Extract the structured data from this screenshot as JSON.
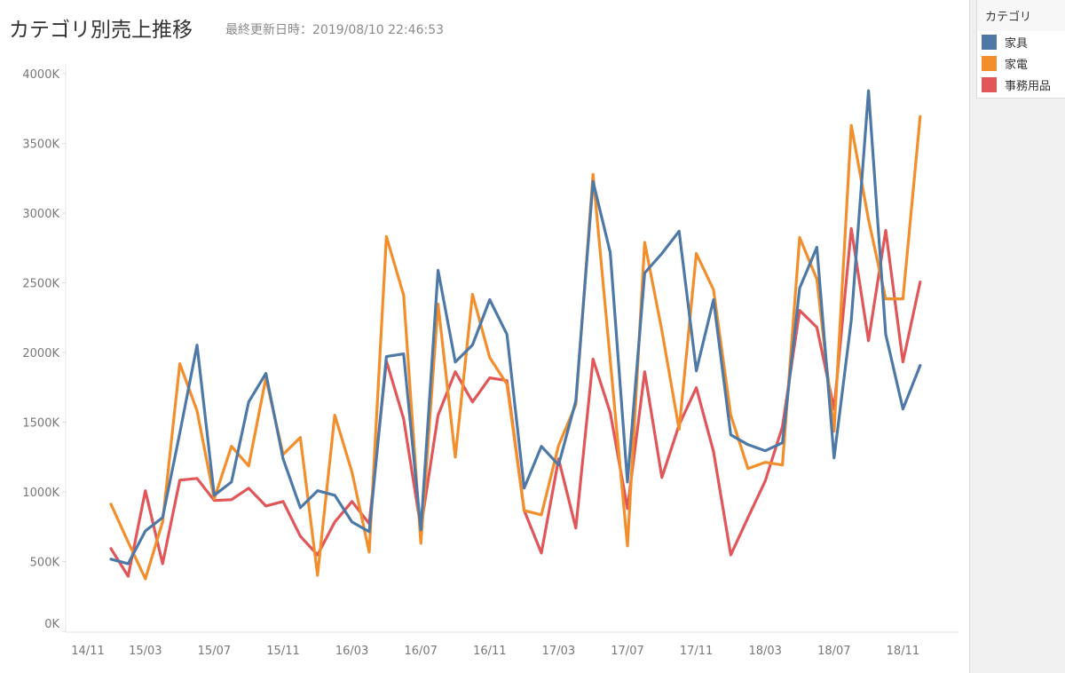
{
  "title": "カテゴリ別売上推移",
  "subtitle": "最終更新日時：2019/08/10 22:46:53",
  "legend": {
    "title": "カテゴリ",
    "items": [
      {
        "label": "家具",
        "color": "#4e79a7"
      },
      {
        "label": "家電",
        "color": "#f28e2b"
      },
      {
        "label": "事務用品",
        "color": "#e15759"
      }
    ]
  },
  "chart_data": {
    "type": "line",
    "title": "カテゴリ別売上推移",
    "xlabel": "",
    "ylabel": "",
    "ylim": [
      0,
      4000
    ],
    "y_unit": "K",
    "grid": false,
    "legend_position": "right",
    "x_start": "2015/01",
    "x_count": 48,
    "x_ticks": [
      {
        "label": "14/11",
        "index": -2
      },
      {
        "label": "15/03",
        "index": 2
      },
      {
        "label": "15/07",
        "index": 6
      },
      {
        "label": "15/11",
        "index": 10
      },
      {
        "label": "16/03",
        "index": 14
      },
      {
        "label": "16/07",
        "index": 18
      },
      {
        "label": "16/11",
        "index": 22
      },
      {
        "label": "17/03",
        "index": 26
      },
      {
        "label": "17/07",
        "index": 30
      },
      {
        "label": "17/11",
        "index": 34
      },
      {
        "label": "18/03",
        "index": 38
      },
      {
        "label": "18/07",
        "index": 42
      },
      {
        "label": "18/11",
        "index": 46
      }
    ],
    "y_ticks": [
      "0K",
      "500K",
      "1000K",
      "1500K",
      "2000K",
      "2500K",
      "3000K",
      "3500K",
      "4000K"
    ],
    "y_tick_values": [
      0,
      500,
      1000,
      1500,
      2000,
      2500,
      3000,
      3500,
      4000
    ],
    "series": [
      {
        "name": "家具",
        "color": "#4e79a7",
        "values": [
          517,
          485,
          720,
          816,
          1422,
          2053,
          976,
          1071,
          1645,
          1850,
          1237,
          886,
          1008,
          976,
          784,
          714,
          1971,
          1990,
          727,
          2589,
          1932,
          2054,
          2379,
          2130,
          1027,
          1327,
          1193,
          1652,
          3227,
          2717,
          1071,
          2570,
          2710,
          2870,
          1869,
          2379,
          1409,
          1339,
          1295,
          1352,
          2462,
          2755,
          1244,
          2232,
          3878,
          2130,
          1594,
          1907
        ]
      },
      {
        "name": "家電",
        "color": "#f28e2b",
        "values": [
          912,
          640,
          376,
          784,
          1920,
          1582,
          950,
          1327,
          1186,
          1818,
          1269,
          1390,
          402,
          1550,
          1142,
          568,
          2832,
          2411,
          631,
          2347,
          1250,
          2417,
          1964,
          1773,
          867,
          835,
          1333,
          1626,
          3278,
          1945,
          612,
          2790,
          2156,
          1448,
          2710,
          2449,
          1550,
          1167,
          1212,
          1193,
          2825,
          2526,
          1435,
          3629,
          2953,
          2385,
          2385,
          3693
        ]
      },
      {
        "name": "事務用品",
        "color": "#e15759",
        "values": [
          593,
          395,
          1008,
          485,
          1084,
          1097,
          938,
          944,
          1027,
          899,
          931,
          682,
          548,
          784,
          931,
          772,
          1939,
          1524,
          740,
          1550,
          1862,
          1645,
          1818,
          1798,
          867,
          561,
          1237,
          740,
          1952,
          1569,
          880,
          1862,
          1103,
          1480,
          1747,
          1288,
          548,
          816,
          1078,
          1467,
          2302,
          2181,
          1594,
          2889,
          2085,
          2876,
          1932,
          2506
        ]
      }
    ]
  }
}
